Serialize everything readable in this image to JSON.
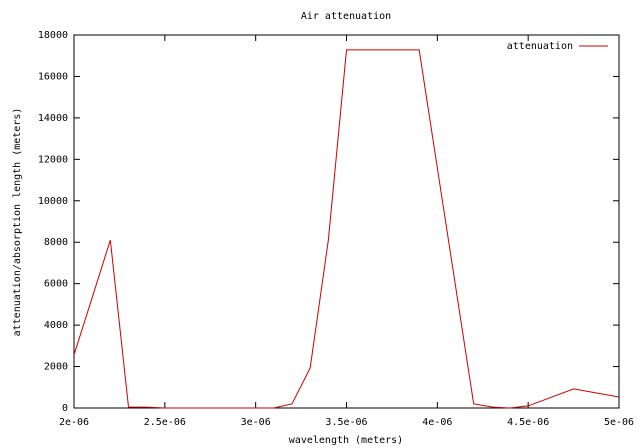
{
  "chart_data": {
    "type": "line",
    "title": "Air attenuation",
    "x_label": "wavelength (meters)",
    "y_label": "attenuation/absorption length (meters)",
    "x": [
      2e-06,
      2.2e-06,
      2.3e-06,
      2.4e-06,
      2.5e-06,
      3.1e-06,
      3.2e-06,
      3.3e-06,
      3.4e-06,
      3.5e-06,
      3.9e-06,
      4.2e-06,
      4.3e-06,
      4.4e-06,
      4.5e-06,
      4.75e-06,
      5e-06
    ],
    "series": [
      {
        "name": "attenuation",
        "color": "#cc0000",
        "values": [
          2560,
          8100,
          50,
          40,
          0,
          0,
          200,
          1930,
          8100,
          17280,
          17280,
          200,
          50,
          0,
          100,
          920,
          530
        ]
      }
    ],
    "xlim": [
      2e-06,
      5e-06
    ],
    "xticks": [
      {
        "value": 2e-06,
        "label": "2e-06"
      },
      {
        "value": 2.5e-06,
        "label": "2.5e-06"
      },
      {
        "value": 3e-06,
        "label": "3e-06"
      },
      {
        "value": 3.5e-06,
        "label": "3.5e-06"
      },
      {
        "value": 4e-06,
        "label": "4e-06"
      },
      {
        "value": 4.5e-06,
        "label": "4.5e-06"
      },
      {
        "value": 5e-06,
        "label": "5e-06"
      }
    ],
    "ylim": [
      0,
      18000
    ],
    "yticks": [
      0,
      2000,
      4000,
      6000,
      8000,
      10000,
      12000,
      14000,
      16000,
      18000
    ],
    "legend": "top-right",
    "grid": false
  }
}
